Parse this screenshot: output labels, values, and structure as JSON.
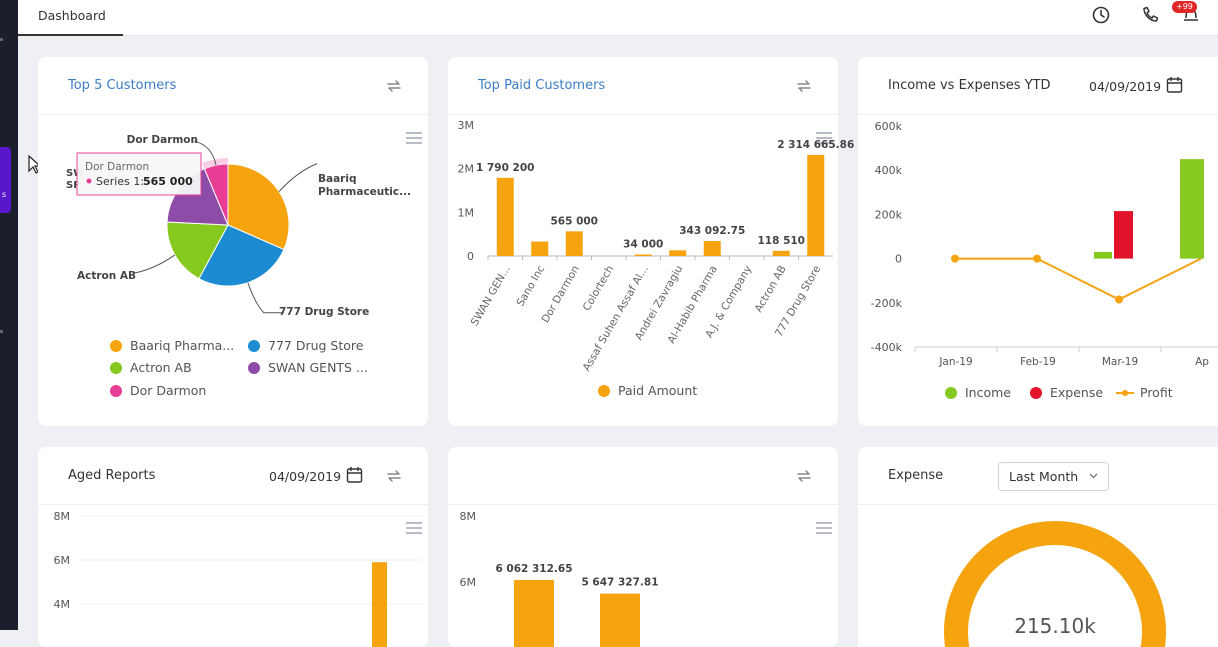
{
  "topbar": {
    "tab_label": "Dashboard",
    "icons": [
      "clock-icon",
      "phone-icon",
      "notification-icon"
    ],
    "notification_badge": "+99"
  },
  "sidebar": {
    "active_label": "s"
  },
  "cards": {
    "top5": {
      "title": "Top 5 Customers"
    },
    "top_paid": {
      "title": "Top Paid Customers"
    },
    "income": {
      "title": "Income vs Expenses YTD",
      "date": "04/09/2019"
    },
    "aged": {
      "title": "Aged Reports",
      "date": "04/09/2019"
    },
    "bottom_middle": {},
    "expense": {
      "title": "Expense",
      "select_value": "Last Month",
      "center_value": "215.10k"
    }
  },
  "colors": {
    "orange": "#f5a30f",
    "blue": "#1d8bd1",
    "green": "#86c91f",
    "purple": "#8e4ca9",
    "pink": "#e83d95",
    "red": "#e2122a",
    "title_blue": "#3b7ec7"
  },
  "chart_data": [
    {
      "type": "pie",
      "labels": [
        "Baariq Pharmaceutic...",
        "777 Drug Store",
        "Actron AB",
        "SWAN GENTS ...",
        "Dor Darmon"
      ],
      "values": [
        30,
        25,
        17,
        17,
        6
      ],
      "legend": [
        "Baariq Pharma...",
        "777 Drug Store",
        "Actron AB",
        "SWAN GENTS ...",
        "Dor Darmon"
      ],
      "tooltip": {
        "title": "Dor Darmon",
        "series": "Series 1:",
        "value": "565 000"
      },
      "partial_label": "SW\nSP"
    },
    {
      "type": "bar",
      "categories": [
        "SWAN GEN...",
        "Sano Inc",
        "Dor Darmon",
        "Colortech",
        "Assaf Suhen Assaf Al...",
        "Andrei Zavragiu",
        "Al-Habib Pharma",
        "A.J. & Company",
        "Actron AB",
        "777 Drug Store"
      ],
      "values": [
        1790200,
        330000,
        565000,
        0,
        34000,
        130000,
        343092.75,
        0,
        118510,
        2314665.86
      ],
      "data_labels": [
        "1 790 200",
        "",
        "565 000",
        "",
        "34 000",
        "",
        "343 092.75",
        "",
        "118 510",
        "2 314 665.86"
      ],
      "yticks": [
        "0",
        "1M",
        "2M",
        "3M"
      ],
      "ylim": [
        0,
        3000000
      ],
      "legend": "Paid Amount"
    },
    {
      "type": "bar",
      "categories": [
        "Jan-19",
        "Feb-19",
        "Mar-19",
        "Ap"
      ],
      "series": [
        {
          "name": "Income",
          "values": [
            0,
            0,
            30000,
            450000
          ]
        },
        {
          "name": "Expense",
          "values": [
            0,
            0,
            215000,
            0
          ]
        },
        {
          "name": "Profit",
          "values": [
            0,
            0,
            -185000,
            0
          ]
        }
      ],
      "yticks": [
        "-400k",
        "-200k",
        "0",
        "200k",
        "400k",
        "600k"
      ],
      "ylim": [
        -400000,
        600000
      ],
      "legend": [
        "Income",
        "Expense",
        "Profit"
      ]
    },
    {
      "type": "bar",
      "yticks": [
        "4M",
        "6M",
        "8M"
      ],
      "values": [
        5900000
      ]
    },
    {
      "type": "bar",
      "yticks": [
        "6M",
        "8M"
      ],
      "values": [
        6062312.65,
        5647327.81
      ],
      "data_labels": [
        "6 062 312.65",
        "5 647 327.81"
      ]
    },
    {
      "type": "pie",
      "center_label": "215.10k"
    }
  ]
}
